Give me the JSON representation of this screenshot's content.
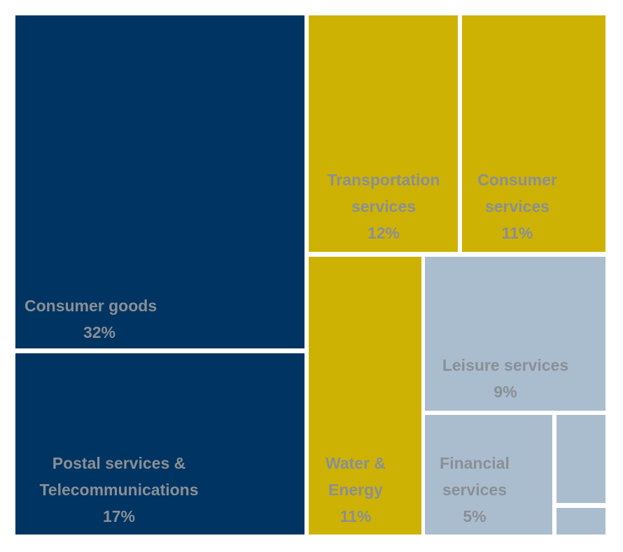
{
  "chart_data": {
    "type": "treemap",
    "colors": {
      "navy": "#003462",
      "gold": "#cdb204",
      "light_blue": "#aabdce",
      "label": "#8a8f96"
    },
    "tiles": [
      {
        "key": "consumer_goods",
        "lines": [
          "Consumer goods"
        ],
        "value": 32,
        "value_label": "32%",
        "group": "navy"
      },
      {
        "key": "postal_telecom",
        "lines": [
          "Postal services &",
          "Telecommunications"
        ],
        "value": 17,
        "value_label": "17%",
        "group": "navy"
      },
      {
        "key": "transportation",
        "lines": [
          "Transportation",
          "services"
        ],
        "value": 12,
        "value_label": "12%",
        "group": "gold"
      },
      {
        "key": "consumer_services",
        "lines": [
          "Consumer",
          "services"
        ],
        "value": 11,
        "value_label": "11%",
        "group": "gold"
      },
      {
        "key": "water_energy",
        "lines": [
          "Water &",
          "Energy"
        ],
        "value": 11,
        "value_label": "11%",
        "group": "gold"
      },
      {
        "key": "leisure",
        "lines": [
          "Leisure services"
        ],
        "value": 9,
        "value_label": "9%",
        "group": "light_blue"
      },
      {
        "key": "financial",
        "lines": [
          "Financial",
          "services"
        ],
        "value": 5,
        "value_label": "5%",
        "group": "light_blue"
      },
      {
        "key": "other_1",
        "lines": [],
        "value_label": "",
        "group": "light_blue"
      },
      {
        "key": "other_2",
        "lines": [],
        "value_label": "",
        "group": "light_blue"
      }
    ]
  }
}
